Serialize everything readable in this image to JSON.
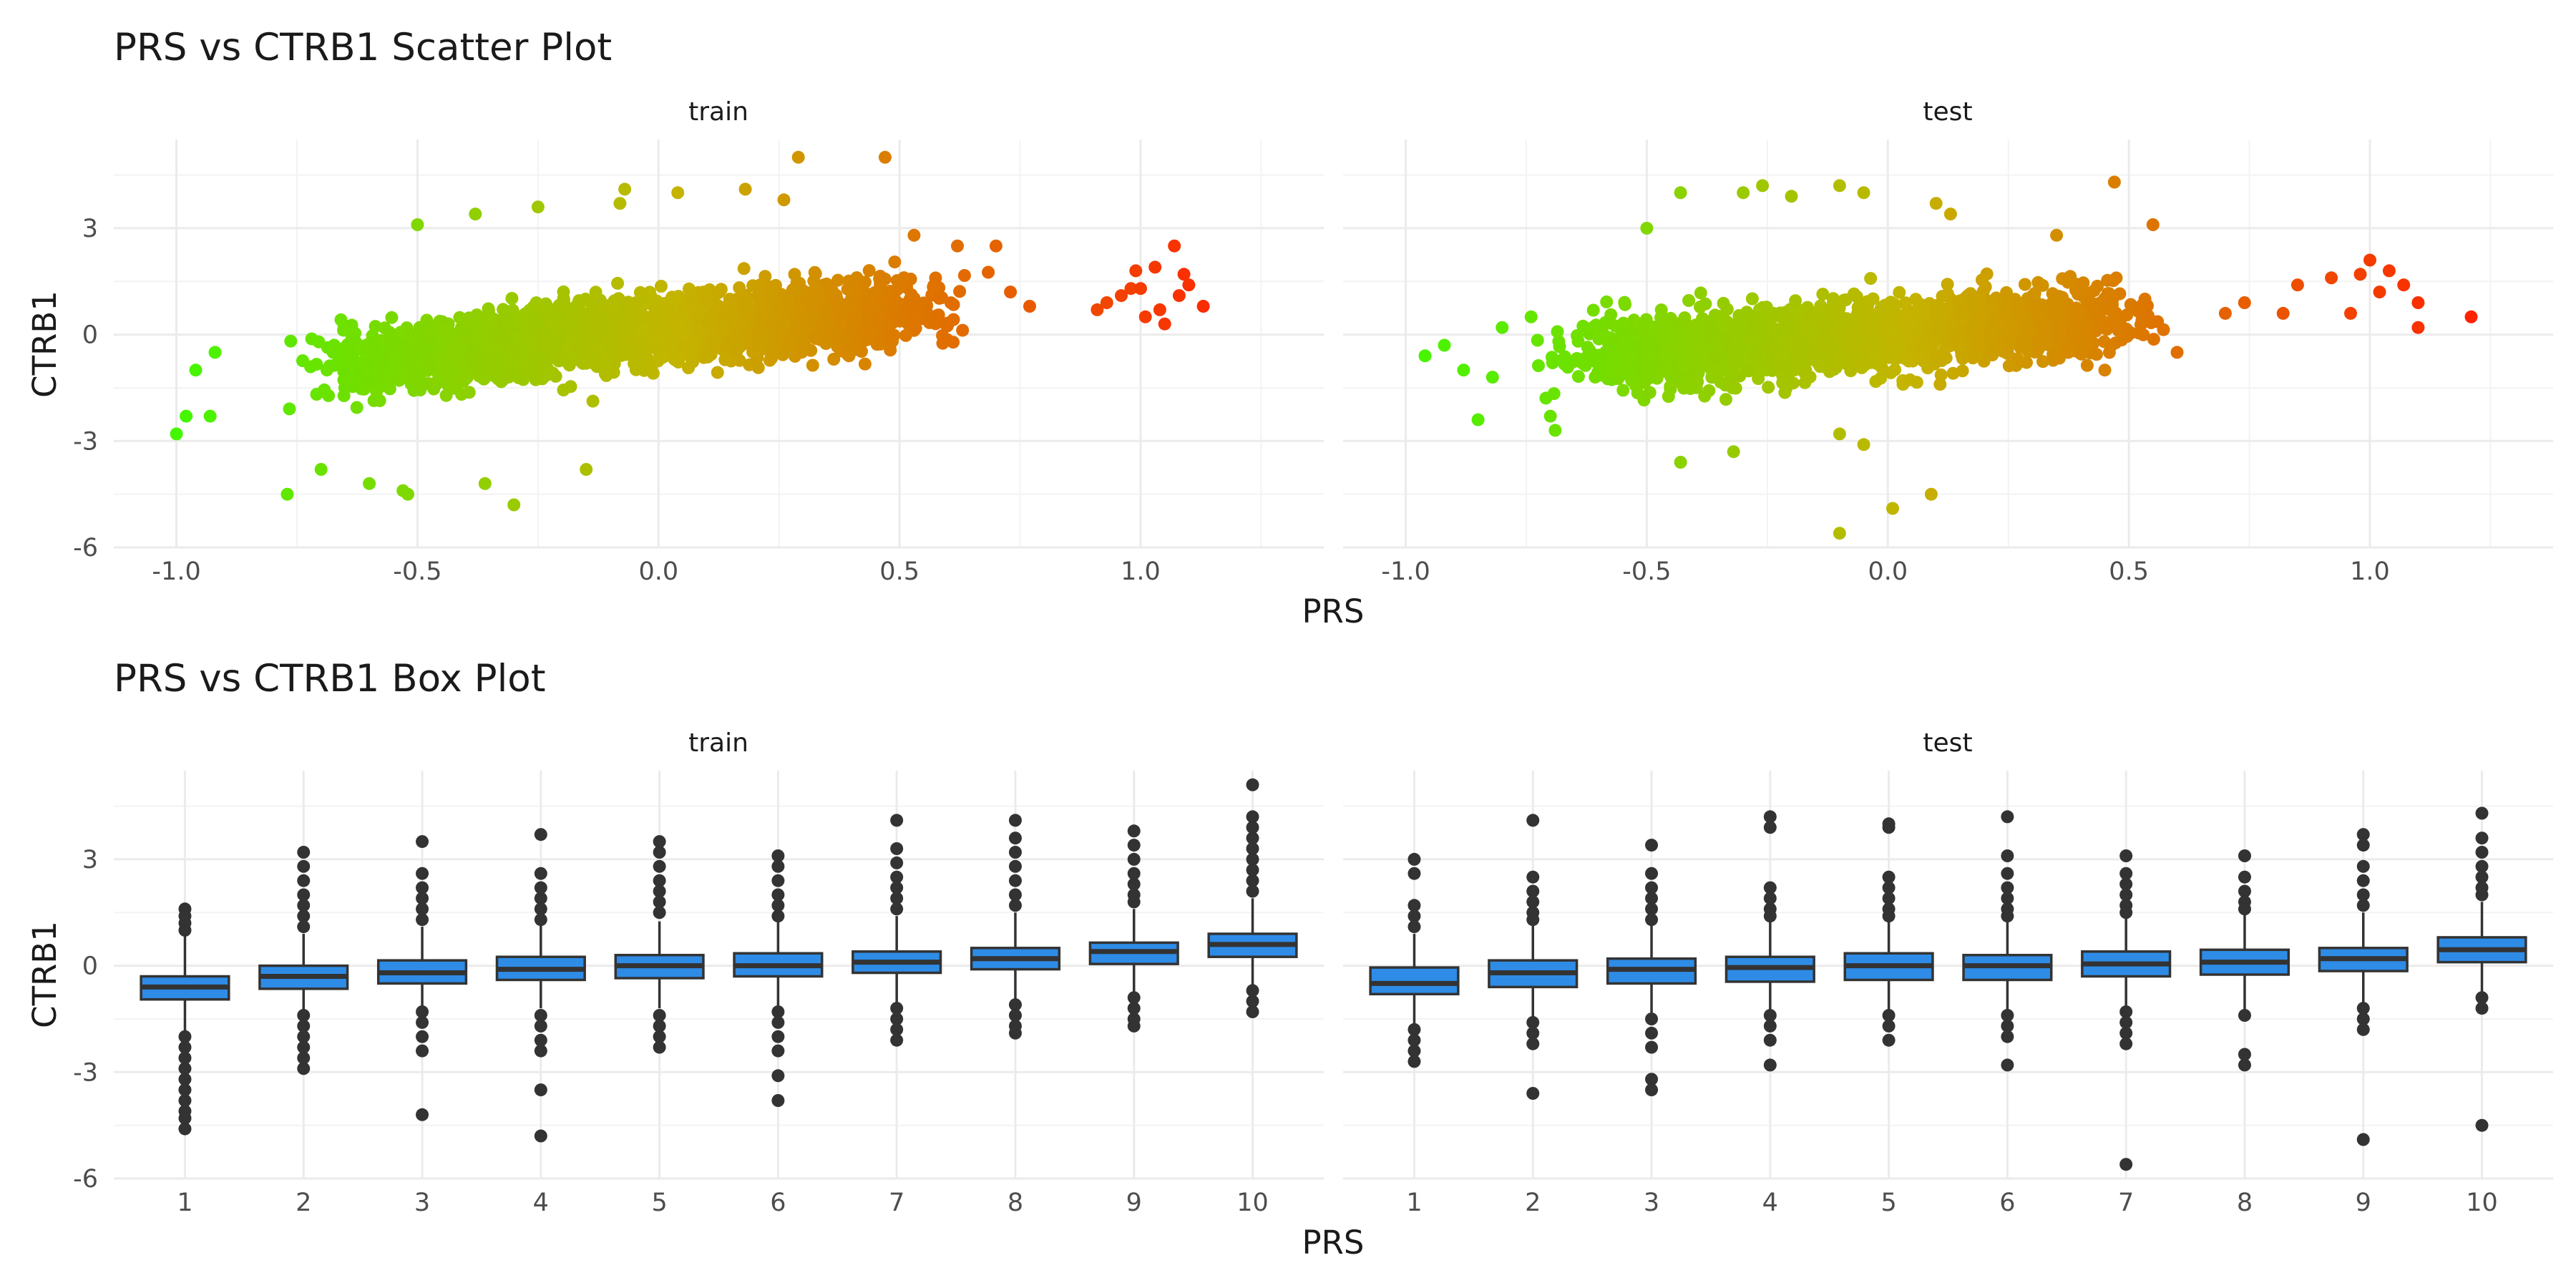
{
  "chart_data": [
    {
      "type": "scatter",
      "title": "PRS vs CTRB1 Scatter Plot",
      "xlabel": "PRS",
      "ylabel": "CTRB1",
      "xlim": [
        -1.13,
        1.38
      ],
      "ylim": [
        -6.0,
        5.5
      ],
      "x_ticks": [
        -1.0,
        -0.5,
        0.0,
        0.5,
        1.0
      ],
      "x_tick_labels": [
        "-1.0",
        "-0.5",
        "0.0",
        "0.5",
        "1.0"
      ],
      "y_ticks": [
        -6,
        -3,
        0,
        3
      ],
      "y_tick_labels": [
        "-6",
        "-3",
        "0",
        "3"
      ],
      "grid": true,
      "color_scale": {
        "low": "#33ff00",
        "mid": "#c4b400",
        "high": "#ff2200"
      },
      "facets": [
        {
          "name": "train",
          "bulk": {
            "x_min": -0.85,
            "x_max": 0.73,
            "slope": 1.25,
            "intercept": 0.05,
            "spread": 0.65,
            "count": 2400
          },
          "points": [
            {
              "x": -1.0,
              "y": -2.8
            },
            {
              "x": -0.98,
              "y": -2.3
            },
            {
              "x": -0.93,
              "y": -2.3
            },
            {
              "x": -0.96,
              "y": -1.0
            },
            {
              "x": -0.92,
              "y": -0.5
            },
            {
              "x": -0.77,
              "y": -4.5
            },
            {
              "x": -0.7,
              "y": -3.8
            },
            {
              "x": -0.6,
              "y": -4.2
            },
            {
              "x": -0.52,
              "y": -4.5
            },
            {
              "x": -0.53,
              "y": -4.4
            },
            {
              "x": -0.36,
              "y": -4.2
            },
            {
              "x": -0.3,
              "y": -4.8
            },
            {
              "x": -0.15,
              "y": -3.8
            },
            {
              "x": -0.5,
              "y": 3.1
            },
            {
              "x": -0.38,
              "y": 3.4
            },
            {
              "x": -0.25,
              "y": 3.6
            },
            {
              "x": -0.08,
              "y": 3.7
            },
            {
              "x": -0.07,
              "y": 4.1
            },
            {
              "x": 0.04,
              "y": 4.0
            },
            {
              "x": 0.18,
              "y": 4.1
            },
            {
              "x": 0.26,
              "y": 3.8
            },
            {
              "x": 0.29,
              "y": 5.0
            },
            {
              "x": 0.47,
              "y": 5.0
            },
            {
              "x": 0.53,
              "y": 2.8
            },
            {
              "x": 0.62,
              "y": 2.5
            },
            {
              "x": 0.7,
              "y": 2.5
            },
            {
              "x": 0.73,
              "y": 1.2
            },
            {
              "x": 0.77,
              "y": 0.8
            },
            {
              "x": 0.91,
              "y": 0.7
            },
            {
              "x": 0.93,
              "y": 0.9
            },
            {
              "x": 0.96,
              "y": 1.1
            },
            {
              "x": 0.98,
              "y": 1.3
            },
            {
              "x": 0.99,
              "y": 1.8
            },
            {
              "x": 1.0,
              "y": 1.3
            },
            {
              "x": 1.01,
              "y": 0.5
            },
            {
              "x": 1.03,
              "y": 1.9
            },
            {
              "x": 1.04,
              "y": 0.7
            },
            {
              "x": 1.05,
              "y": 0.3
            },
            {
              "x": 1.07,
              "y": 2.5
            },
            {
              "x": 1.08,
              "y": 1.1
            },
            {
              "x": 1.09,
              "y": 1.7
            },
            {
              "x": 1.1,
              "y": 1.4
            },
            {
              "x": 1.13,
              "y": 0.8
            }
          ]
        },
        {
          "name": "test",
          "bulk": {
            "x_min": -0.8,
            "x_max": 0.65,
            "slope": 1.0,
            "intercept": 0.0,
            "spread": 0.65,
            "count": 2000
          },
          "points": [
            {
              "x": -0.96,
              "y": -0.6
            },
            {
              "x": -0.92,
              "y": -0.3
            },
            {
              "x": -0.88,
              "y": -1.0
            },
            {
              "x": -0.85,
              "y": -2.4
            },
            {
              "x": -0.82,
              "y": -1.2
            },
            {
              "x": -0.8,
              "y": 0.2
            },
            {
              "x": -0.74,
              "y": 0.5
            },
            {
              "x": -0.7,
              "y": -2.3
            },
            {
              "x": -0.69,
              "y": -2.7
            },
            {
              "x": -0.5,
              "y": 3.0
            },
            {
              "x": -0.43,
              "y": 4.0
            },
            {
              "x": -0.3,
              "y": 4.0
            },
            {
              "x": -0.26,
              "y": 4.2
            },
            {
              "x": -0.2,
              "y": 3.9
            },
            {
              "x": -0.1,
              "y": 4.2
            },
            {
              "x": 0.1,
              "y": 3.7
            },
            {
              "x": 0.13,
              "y": 3.4
            },
            {
              "x": -0.05,
              "y": 4.0
            },
            {
              "x": -0.43,
              "y": -3.6
            },
            {
              "x": -0.32,
              "y": -3.3
            },
            {
              "x": -0.1,
              "y": -2.8
            },
            {
              "x": -0.05,
              "y": -3.1
            },
            {
              "x": -0.1,
              "y": -5.6
            },
            {
              "x": 0.01,
              "y": -4.9
            },
            {
              "x": 0.09,
              "y": -4.5
            },
            {
              "x": 0.35,
              "y": 2.8
            },
            {
              "x": 0.47,
              "y": 4.3
            },
            {
              "x": 0.55,
              "y": 3.1
            },
            {
              "x": 0.45,
              "y": -1.0
            },
            {
              "x": 0.6,
              "y": -0.5
            },
            {
              "x": 0.7,
              "y": 0.6
            },
            {
              "x": 0.74,
              "y": 0.9
            },
            {
              "x": 0.82,
              "y": 0.6
            },
            {
              "x": 0.85,
              "y": 1.4
            },
            {
              "x": 0.92,
              "y": 1.6
            },
            {
              "x": 0.96,
              "y": 0.6
            },
            {
              "x": 0.98,
              "y": 1.7
            },
            {
              "x": 1.0,
              "y": 2.1
            },
            {
              "x": 1.02,
              "y": 1.2
            },
            {
              "x": 1.04,
              "y": 1.8
            },
            {
              "x": 1.07,
              "y": 1.4
            },
            {
              "x": 1.1,
              "y": 0.9
            },
            {
              "x": 1.1,
              "y": 0.2
            },
            {
              "x": 1.21,
              "y": 0.5
            }
          ]
        }
      ]
    },
    {
      "type": "box",
      "title": "PRS vs CTRB1 Box Plot",
      "xlabel": "PRS",
      "ylabel": "CTRB1",
      "categories": [
        "1",
        "2",
        "3",
        "4",
        "5",
        "6",
        "7",
        "8",
        "9",
        "10"
      ],
      "ylim": [
        -6.0,
        5.5
      ],
      "y_ticks": [
        -6,
        -3,
        0,
        3
      ],
      "y_tick_labels": [
        "-6",
        "-3",
        "0",
        "3"
      ],
      "grid": true,
      "box_color": "#2e8ce6",
      "line_color": "#333333",
      "facets": [
        {
          "name": "train",
          "boxes": [
            {
              "q1": -0.95,
              "median": -0.6,
              "q3": -0.3,
              "lower_whisker": -1.9,
              "upper_whisker": 0.85,
              "outliers": [
                1.6,
                1.4,
                1.2,
                1.0,
                -2.0,
                -2.3,
                -2.6,
                -2.9,
                -3.2,
                -3.5,
                -3.8,
                -4.1,
                -4.3,
                -4.6
              ]
            },
            {
              "q1": -0.65,
              "median": -0.3,
              "q3": 0.0,
              "lower_whisker": -1.3,
              "upper_whisker": 0.9,
              "outliers": [
                3.2,
                2.8,
                2.4,
                2.0,
                1.7,
                1.4,
                1.1,
                -1.4,
                -1.7,
                -2.0,
                -2.3,
                -2.6,
                -2.9
              ]
            },
            {
              "q1": -0.5,
              "median": -0.2,
              "q3": 0.15,
              "lower_whisker": -1.2,
              "upper_whisker": 1.1,
              "outliers": [
                3.5,
                2.6,
                2.2,
                1.9,
                1.6,
                1.3,
                -1.3,
                -1.6,
                -2.0,
                -2.4,
                -4.2
              ]
            },
            {
              "q1": -0.4,
              "median": -0.1,
              "q3": 0.25,
              "lower_whisker": -1.2,
              "upper_whisker": 1.2,
              "outliers": [
                3.7,
                2.6,
                2.2,
                1.9,
                1.6,
                1.3,
                -1.4,
                -1.7,
                -2.1,
                -2.4,
                -3.5,
                -4.8
              ]
            },
            {
              "q1": -0.35,
              "median": 0.0,
              "q3": 0.3,
              "lower_whisker": -1.2,
              "upper_whisker": 1.25,
              "outliers": [
                3.5,
                3.2,
                2.8,
                2.4,
                2.1,
                1.8,
                1.5,
                -1.4,
                -1.7,
                -2.0,
                -2.3
              ]
            },
            {
              "q1": -0.3,
              "median": 0.0,
              "q3": 0.35,
              "lower_whisker": -1.2,
              "upper_whisker": 1.3,
              "outliers": [
                3.1,
                2.8,
                2.4,
                2.0,
                1.7,
                1.4,
                -1.3,
                -1.6,
                -2.0,
                -2.4,
                -3.1,
                -3.8
              ]
            },
            {
              "q1": -0.2,
              "median": 0.1,
              "q3": 0.4,
              "lower_whisker": -1.1,
              "upper_whisker": 1.4,
              "outliers": [
                4.1,
                3.3,
                2.9,
                2.5,
                2.2,
                1.9,
                1.6,
                -1.2,
                -1.5,
                -1.8,
                -2.1
              ]
            },
            {
              "q1": -0.1,
              "median": 0.2,
              "q3": 0.5,
              "lower_whisker": -1.0,
              "upper_whisker": 1.5,
              "outliers": [
                4.1,
                3.6,
                3.2,
                2.8,
                2.4,
                2.0,
                1.7,
                -1.1,
                -1.4,
                -1.7,
                -1.9
              ]
            },
            {
              "q1": 0.05,
              "median": 0.4,
              "q3": 0.65,
              "lower_whisker": -0.8,
              "upper_whisker": 1.6,
              "outliers": [
                3.8,
                3.4,
                3.0,
                2.6,
                2.3,
                2.0,
                1.8,
                -0.9,
                -1.2,
                -1.5,
                -1.7
              ]
            },
            {
              "q1": 0.25,
              "median": 0.6,
              "q3": 0.9,
              "lower_whisker": -0.6,
              "upper_whisker": 1.9,
              "outliers": [
                5.1,
                4.2,
                3.9,
                3.6,
                3.3,
                3.0,
                2.7,
                2.4,
                2.1,
                -0.7,
                -1.0,
                -1.3
              ]
            }
          ]
        },
        {
          "name": "test",
          "boxes": [
            {
              "q1": -0.8,
              "median": -0.5,
              "q3": -0.05,
              "lower_whisker": -1.7,
              "upper_whisker": 0.9,
              "outliers": [
                3.0,
                2.6,
                1.7,
                1.4,
                1.1,
                -1.8,
                -2.1,
                -2.4,
                -2.7
              ]
            },
            {
              "q1": -0.6,
              "median": -0.2,
              "q3": 0.15,
              "lower_whisker": -1.5,
              "upper_whisker": 1.2,
              "outliers": [
                4.1,
                2.5,
                2.1,
                1.8,
                1.5,
                1.3,
                -1.6,
                -1.9,
                -2.2,
                -3.6
              ]
            },
            {
              "q1": -0.5,
              "median": -0.1,
              "q3": 0.2,
              "lower_whisker": -1.4,
              "upper_whisker": 1.2,
              "outliers": [
                3.4,
                2.6,
                2.2,
                1.9,
                1.6,
                1.3,
                -1.5,
                -1.9,
                -2.3,
                -3.2,
                -3.5
              ]
            },
            {
              "q1": -0.45,
              "median": -0.05,
              "q3": 0.25,
              "lower_whisker": -1.3,
              "upper_whisker": 1.3,
              "outliers": [
                4.2,
                3.9,
                2.2,
                1.9,
                1.6,
                1.4,
                -1.4,
                -1.7,
                -2.1,
                -2.8
              ]
            },
            {
              "q1": -0.4,
              "median": 0.0,
              "q3": 0.35,
              "lower_whisker": -1.3,
              "upper_whisker": 1.35,
              "outliers": [
                4.0,
                3.9,
                2.5,
                2.2,
                1.9,
                1.6,
                1.4,
                -1.4,
                -1.7,
                -2.1
              ]
            },
            {
              "q1": -0.4,
              "median": 0.0,
              "q3": 0.3,
              "lower_whisker": -1.3,
              "upper_whisker": 1.3,
              "outliers": [
                4.2,
                3.1,
                2.6,
                2.2,
                1.9,
                1.6,
                1.4,
                -1.4,
                -1.7,
                -2.0,
                -2.8
              ]
            },
            {
              "q1": -0.3,
              "median": 0.05,
              "q3": 0.4,
              "lower_whisker": -1.2,
              "upper_whisker": 1.4,
              "outliers": [
                3.1,
                2.6,
                2.3,
                2.0,
                1.7,
                1.5,
                -1.3,
                -1.6,
                -1.9,
                -2.2,
                -5.6
              ]
            },
            {
              "q1": -0.25,
              "median": 0.1,
              "q3": 0.45,
              "lower_whisker": -1.3,
              "upper_whisker": 1.5,
              "outliers": [
                3.1,
                2.5,
                2.1,
                1.8,
                1.6,
                -1.4,
                -2.5,
                -2.8
              ]
            },
            {
              "q1": -0.15,
              "median": 0.2,
              "q3": 0.5,
              "lower_whisker": -1.1,
              "upper_whisker": 1.5,
              "outliers": [
                3.7,
                3.4,
                2.8,
                2.4,
                2.0,
                1.7,
                -1.2,
                -1.5,
                -1.8,
                -4.9
              ]
            },
            {
              "q1": 0.1,
              "median": 0.45,
              "q3": 0.8,
              "lower_whisker": -0.8,
              "upper_whisker": 1.8,
              "outliers": [
                4.3,
                3.6,
                3.2,
                2.8,
                2.5,
                2.2,
                2.0,
                -0.9,
                -1.2,
                -4.5
              ]
            }
          ]
        }
      ]
    }
  ]
}
